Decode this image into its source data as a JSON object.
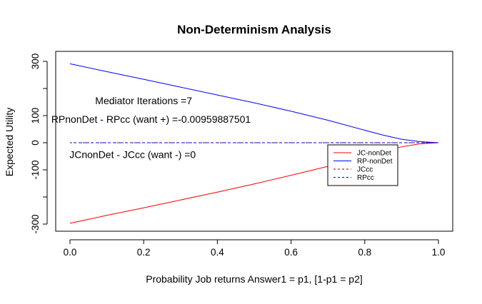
{
  "chart_data": {
    "type": "line",
    "title": "Non-Determinism Analysis",
    "xlabel": "Probability Job returns Answer1 = p1, [1-p1 = p2]",
    "ylabel": "Expected Utility",
    "xlim": [
      0.0,
      1.0
    ],
    "ylim": [
      -300,
      300
    ],
    "x_ticks": [
      "0.0",
      "0.2",
      "0.4",
      "0.6",
      "0.8",
      "1.0"
    ],
    "y_ticks": [
      "-300",
      "-100",
      "0",
      "100",
      "300"
    ],
    "y_tick_values": [
      -300,
      -100,
      0,
      100,
      300
    ],
    "y_minor_tick_values": [
      -200,
      200
    ],
    "grid": false,
    "legend_position": "right",
    "series": [
      {
        "name": "JC-nonDet",
        "color": "#ff0000",
        "style": "solid",
        "x": [
          0.0,
          0.1,
          0.2,
          0.3,
          0.4,
          0.5,
          0.6,
          0.7,
          0.8,
          0.85,
          0.9,
          0.95,
          1.0
        ],
        "y": [
          -297,
          -268,
          -240,
          -211,
          -182,
          -152,
          -120,
          -87,
          -50,
          -32,
          -15,
          -4,
          0
        ]
      },
      {
        "name": "RP-nonDet",
        "color": "#0000ff",
        "style": "solid",
        "x": [
          0.0,
          0.1,
          0.2,
          0.3,
          0.4,
          0.5,
          0.6,
          0.7,
          0.8,
          0.85,
          0.9,
          0.95,
          1.0
        ],
        "y": [
          291,
          262,
          234,
          205,
          176,
          147,
          116,
          83,
          46,
          28,
          13,
          4,
          0
        ]
      },
      {
        "name": "JCcc",
        "color": "#8b0000",
        "style": "dashed",
        "x": [
          0.0,
          1.0
        ],
        "y": [
          0,
          0
        ]
      },
      {
        "name": "RPcc",
        "color": "#0000ff",
        "style": "dashed",
        "x": [
          0.0,
          1.0
        ],
        "y": [
          0,
          0
        ]
      }
    ],
    "annotations": [
      {
        "text": "Mediator Iterations =7",
        "x": 0.2,
        "y": 142
      },
      {
        "text": "RPnonDet - RPcc (want +) =-0.00959887501",
        "x": 0.22,
        "y": 74
      },
      {
        "text": "JCnonDet - JCcc (want -) =0",
        "x": 0.17,
        "y": -56
      }
    ]
  }
}
